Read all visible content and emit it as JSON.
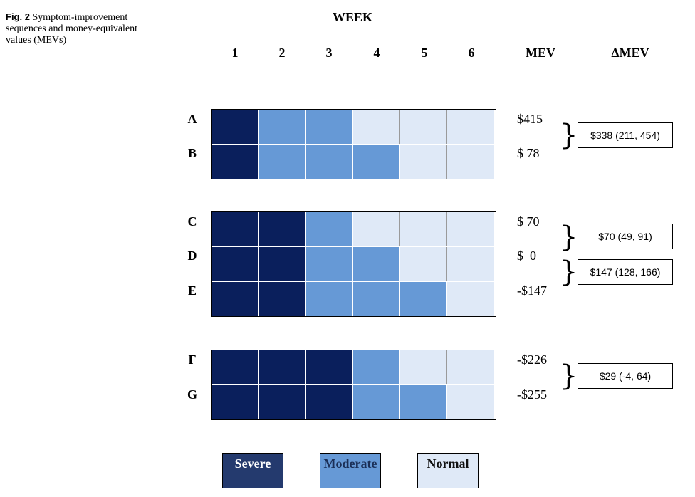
{
  "caption": {
    "label": "Fig. 2",
    "text": "Symptom-improvement sequences and money-equivalent values (MEVs)"
  },
  "header": {
    "week_title": "WEEK",
    "weeks": [
      "1",
      "2",
      "3",
      "4",
      "5",
      "6"
    ],
    "mev_label": "MEV",
    "delta_mev_label": "ΔMEV"
  },
  "rows": [
    {
      "label": "A",
      "mev": "$415",
      "cells": [
        "severe",
        "moderate",
        "moderate",
        "normal",
        "normal",
        "normal"
      ]
    },
    {
      "label": "B",
      "mev": "$ 78",
      "cells": [
        "severe",
        "moderate",
        "moderate",
        "moderate",
        "normal",
        "normal"
      ]
    },
    {
      "label": "C",
      "mev": "$ 70",
      "cells": [
        "severe",
        "severe",
        "moderate",
        "normal",
        "normal",
        "normal"
      ]
    },
    {
      "label": "D",
      "mev": "$  0",
      "cells": [
        "severe",
        "severe",
        "moderate",
        "moderate",
        "normal",
        "normal"
      ]
    },
    {
      "label": "E",
      "mev": "-$147",
      "cells": [
        "severe",
        "severe",
        "moderate",
        "moderate",
        "moderate",
        "normal"
      ]
    },
    {
      "label": "F",
      "mev": "-$226",
      "cells": [
        "severe",
        "severe",
        "severe",
        "moderate",
        "normal",
        "normal"
      ]
    },
    {
      "label": "G",
      "mev": "-$255",
      "cells": [
        "severe",
        "severe",
        "severe",
        "moderate",
        "moderate",
        "normal"
      ]
    }
  ],
  "deltas": [
    {
      "pair": "A-B",
      "text": "$338 (211, 454)"
    },
    {
      "pair": "C-D",
      "text": "$70 (49, 91)"
    },
    {
      "pair": "D-E",
      "text": "$147 (128, 166)"
    },
    {
      "pair": "F-G",
      "text": "$29 (-4, 64)"
    }
  ],
  "legend": {
    "severe": "Severe",
    "moderate": "Moderate",
    "normal": "Normal"
  },
  "colors": {
    "severe": "#0a1f5c",
    "moderate": "#6699d6",
    "normal": "#dfe9f7"
  }
}
